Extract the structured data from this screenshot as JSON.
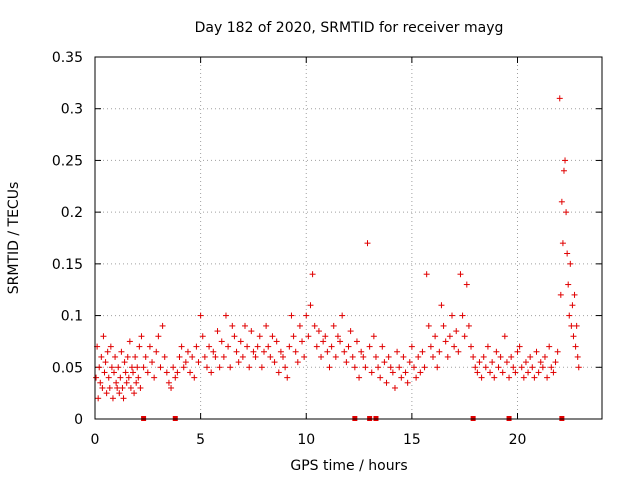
{
  "chart_data": {
    "type": "scatter",
    "title": "Day 182 of 2020, SRMTID for receiver mayg",
    "xlabel": "GPS time / hours",
    "ylabel": "SRMTID / TECUs",
    "xlim": [
      0,
      24
    ],
    "ylim": [
      0,
      0.35
    ],
    "grid": true,
    "color": "#e00000",
    "x_ticks": [
      0,
      5,
      10,
      15,
      20
    ],
    "x_tick_labels": [
      "0",
      "5",
      "10",
      "15",
      "20"
    ],
    "y_ticks": [
      0,
      0.05,
      0.1,
      0.15,
      0.2,
      0.25,
      0.3,
      0.35
    ],
    "y_tick_labels": [
      "0",
      "0.05",
      "0.1",
      "0.15",
      "0.2",
      "0.25",
      "0.3",
      "0.35"
    ],
    "series": [
      {
        "name": "SRMTID",
        "x": [
          0.05,
          0.1,
          0.15,
          0.2,
          0.25,
          0.3,
          0.35,
          0.4,
          0.45,
          0.5,
          0.55,
          0.6,
          0.65,
          0.7,
          0.75,
          0.8,
          0.85,
          0.9,
          0.95,
          1.0,
          1.05,
          1.1,
          1.15,
          1.2,
          1.25,
          1.3,
          1.35,
          1.4,
          1.45,
          1.5,
          1.55,
          1.6,
          1.65,
          1.7,
          1.75,
          1.8,
          1.85,
          1.9,
          1.95,
          2.0,
          2.05,
          2.1,
          2.15,
          2.2,
          2.3,
          2.4,
          2.5,
          2.6,
          2.7,
          2.8,
          2.9,
          3.0,
          3.1,
          3.2,
          3.3,
          3.4,
          3.5,
          3.6,
          3.7,
          3.8,
          3.9,
          4.0,
          4.1,
          4.2,
          4.3,
          4.4,
          4.5,
          4.6,
          4.7,
          4.8,
          4.9,
          5.0,
          5.1,
          5.2,
          5.3,
          5.4,
          5.5,
          5.6,
          5.7,
          5.8,
          5.9,
          6.0,
          6.1,
          6.2,
          6.3,
          6.4,
          6.5,
          6.6,
          6.7,
          6.8,
          6.9,
          7.0,
          7.1,
          7.2,
          7.3,
          7.4,
          7.5,
          7.6,
          7.7,
          7.8,
          7.9,
          8.0,
          8.1,
          8.2,
          8.3,
          8.4,
          8.5,
          8.6,
          8.7,
          8.8,
          8.9,
          9.0,
          9.1,
          9.2,
          9.3,
          9.4,
          9.5,
          9.6,
          9.7,
          9.8,
          9.9,
          10.0,
          10.1,
          10.2,
          10.3,
          10.4,
          10.5,
          10.6,
          10.7,
          10.8,
          10.9,
          11.0,
          11.1,
          11.2,
          11.3,
          11.4,
          11.5,
          11.6,
          11.7,
          11.8,
          11.9,
          12.0,
          12.1,
          12.2,
          12.3,
          12.4,
          12.5,
          12.6,
          12.7,
          12.8,
          12.9,
          13.0,
          13.1,
          13.2,
          13.3,
          13.4,
          13.5,
          13.6,
          13.7,
          13.8,
          13.9,
          14.0,
          14.1,
          14.2,
          14.3,
          14.4,
          14.5,
          14.6,
          14.7,
          14.8,
          14.9,
          15.0,
          15.1,
          15.2,
          15.3,
          15.4,
          15.5,
          15.6,
          15.7,
          15.8,
          15.9,
          16.0,
          16.1,
          16.2,
          16.3,
          16.4,
          16.5,
          16.6,
          16.7,
          16.8,
          16.9,
          17.0,
          17.1,
          17.2,
          17.3,
          17.4,
          17.5,
          17.6,
          17.7,
          17.8,
          17.9,
          18.0,
          18.1,
          18.2,
          18.3,
          18.4,
          18.5,
          18.6,
          18.7,
          18.8,
          18.9,
          19.0,
          19.1,
          19.2,
          19.3,
          19.4,
          19.5,
          19.6,
          19.7,
          19.8,
          19.9,
          20.0,
          20.1,
          20.2,
          20.3,
          20.4,
          20.5,
          20.6,
          20.7,
          20.8,
          20.9,
          21.0,
          21.1,
          21.2,
          21.3,
          21.4,
          21.5,
          21.6,
          21.7,
          21.8,
          21.9,
          22.0,
          22.05,
          22.1,
          22.15,
          22.2,
          22.25,
          22.3,
          22.35,
          22.4,
          22.45,
          22.5,
          22.55,
          22.6,
          22.65,
          22.7,
          22.75,
          22.8,
          22.85,
          22.9
        ],
        "y": [
          0.04,
          0.07,
          0.02,
          0.05,
          0.035,
          0.06,
          0.03,
          0.08,
          0.045,
          0.055,
          0.025,
          0.065,
          0.04,
          0.03,
          0.07,
          0.05,
          0.02,
          0.045,
          0.06,
          0.035,
          0.03,
          0.05,
          0.025,
          0.04,
          0.065,
          0.03,
          0.02,
          0.055,
          0.045,
          0.035,
          0.06,
          0.04,
          0.075,
          0.03,
          0.05,
          0.045,
          0.025,
          0.06,
          0.035,
          0.05,
          0.04,
          0.07,
          0.03,
          0.08,
          0.05,
          0.06,
          0.045,
          0.07,
          0.055,
          0.04,
          0.065,
          0.08,
          0.05,
          0.09,
          0.06,
          0.045,
          0.035,
          0.03,
          0.05,
          0.04,
          0.045,
          0.06,
          0.07,
          0.05,
          0.055,
          0.065,
          0.045,
          0.06,
          0.04,
          0.07,
          0.055,
          0.1,
          0.08,
          0.06,
          0.05,
          0.07,
          0.045,
          0.065,
          0.06,
          0.085,
          0.05,
          0.075,
          0.06,
          0.1,
          0.07,
          0.05,
          0.09,
          0.08,
          0.065,
          0.055,
          0.075,
          0.06,
          0.09,
          0.07,
          0.05,
          0.085,
          0.065,
          0.06,
          0.07,
          0.08,
          0.05,
          0.065,
          0.09,
          0.07,
          0.06,
          0.08,
          0.055,
          0.075,
          0.045,
          0.065,
          0.06,
          0.05,
          0.04,
          0.07,
          0.1,
          0.08,
          0.065,
          0.055,
          0.09,
          0.075,
          0.06,
          0.1,
          0.08,
          0.11,
          0.14,
          0.09,
          0.07,
          0.085,
          0.06,
          0.075,
          0.08,
          0.065,
          0.05,
          0.07,
          0.09,
          0.06,
          0.08,
          0.075,
          0.1,
          0.065,
          0.055,
          0.07,
          0.085,
          0.06,
          0.05,
          0.075,
          0.04,
          0.065,
          0.06,
          0.05,
          0.17,
          0.07,
          0.045,
          0.08,
          0.06,
          0.05,
          0.04,
          0.07,
          0.055,
          0.035,
          0.06,
          0.05,
          0.045,
          0.03,
          0.065,
          0.05,
          0.04,
          0.06,
          0.045,
          0.035,
          0.055,
          0.07,
          0.05,
          0.04,
          0.06,
          0.045,
          0.065,
          0.05,
          0.14,
          0.09,
          0.07,
          0.06,
          0.08,
          0.05,
          0.065,
          0.11,
          0.09,
          0.075,
          0.06,
          0.08,
          0.1,
          0.07,
          0.085,
          0.065,
          0.14,
          0.1,
          0.08,
          0.13,
          0.09,
          0.07,
          0.06,
          0.05,
          0.045,
          0.055,
          0.04,
          0.06,
          0.05,
          0.07,
          0.045,
          0.055,
          0.04,
          0.065,
          0.05,
          0.06,
          0.045,
          0.08,
          0.055,
          0.04,
          0.06,
          0.05,
          0.045,
          0.065,
          0.07,
          0.05,
          0.04,
          0.055,
          0.045,
          0.06,
          0.05,
          0.04,
          0.065,
          0.045,
          0.055,
          0.05,
          0.06,
          0.04,
          0.07,
          0.05,
          0.045,
          0.055,
          0.065,
          0.31,
          0.12,
          0.21,
          0.17,
          0.24,
          0.25,
          0.2,
          0.16,
          0.13,
          0.1,
          0.15,
          0.09,
          0.11,
          0.08,
          0.12,
          0.07,
          0.09,
          0.06,
          0.05
        ]
      }
    ],
    "rug_markers_x": [
      2.3,
      3.8,
      12.3,
      13.0,
      13.3,
      17.9,
      19.6,
      22.1
    ]
  }
}
